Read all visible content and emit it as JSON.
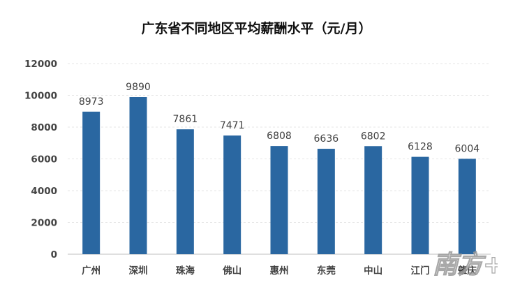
{
  "chart_data": {
    "type": "bar",
    "title": "广东省不同地区平均薪酬水平（元/月）",
    "categories": [
      "广州",
      "深圳",
      "珠海",
      "佛山",
      "惠州",
      "东莞",
      "中山",
      "江门",
      "肇庆"
    ],
    "values": [
      8973,
      9890,
      7861,
      7471,
      6808,
      6636,
      6802,
      6128,
      6004
    ],
    "yticks": [
      "0",
      "2000",
      "4000",
      "6000",
      "8000",
      "10000",
      "12000"
    ],
    "ylim": [
      0,
      12000
    ],
    "xlabel": "",
    "ylabel": "",
    "grid": true,
    "bar_color": "#2a67a1"
  },
  "watermark": {
    "text": "南方+"
  }
}
